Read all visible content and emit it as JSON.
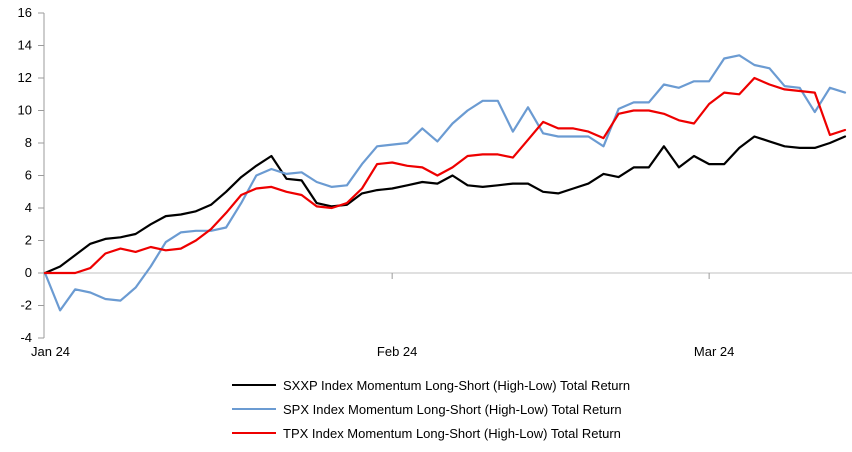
{
  "page": {
    "background": "#ffffff"
  },
  "colors": {
    "axis": "#9B9B9B",
    "zero_line": "#C0C0C0",
    "text": "#000000",
    "sxxp_black": "#000000",
    "spx_blue": "#6B9BD2",
    "tpx_red": "#EE0000"
  },
  "chart_data": {
    "type": "line",
    "title": "",
    "legend_position": "bottom",
    "grid": {
      "horizontal_gridlines": false,
      "zero_line_only": true
    },
    "y_axis": {
      "min": -4,
      "max": 16,
      "step": 2,
      "ticks": [
        16,
        14,
        12,
        10,
        8,
        6,
        4,
        2,
        0,
        -2,
        -4
      ]
    },
    "x_axis": {
      "ticks": [
        {
          "label": "Jan 24",
          "day": 0,
          "align": "left",
          "show_mark": false
        },
        {
          "label": "Feb 24",
          "day": 23,
          "align": "center",
          "show_mark": true
        },
        {
          "label": "Mar 24",
          "day": 44,
          "align": "center",
          "show_mark": true
        }
      ],
      "points_per_series": 54
    },
    "series": [
      {
        "id": "sxxp",
        "name": "SXXP Index Momentum Long-Short (High-Low) Total Return",
        "color": "#000000",
        "values": [
          0,
          0.4,
          1.1,
          1.8,
          2.1,
          2.2,
          2.4,
          3.0,
          3.5,
          3.6,
          3.8,
          4.2,
          5.0,
          5.9,
          6.6,
          7.2,
          5.8,
          5.7,
          4.3,
          4.1,
          4.2,
          4.9,
          5.1,
          5.2,
          5.4,
          5.6,
          5.5,
          6.0,
          5.4,
          5.3,
          5.4,
          5.5,
          5.5,
          5.0,
          4.9,
          5.2,
          5.5,
          6.1,
          5.9,
          6.5,
          6.5,
          7.8,
          6.5,
          7.2,
          6.7,
          6.7,
          7.7,
          8.4,
          8.1,
          7.8,
          7.7,
          7.7,
          8.0,
          8.4
        ]
      },
      {
        "id": "spx",
        "name": "SPX Index Momentum Long-Short (High-Low) Total Return",
        "color": "#6B9BD2",
        "values": [
          0,
          -2.3,
          -1.0,
          -1.2,
          -1.6,
          -1.7,
          -0.9,
          0.4,
          1.9,
          2.5,
          2.6,
          2.6,
          2.8,
          4.3,
          6.0,
          6.4,
          6.1,
          6.2,
          5.6,
          5.3,
          5.4,
          6.7,
          7.8,
          7.9,
          8.0,
          8.9,
          8.1,
          9.2,
          10.0,
          10.6,
          10.6,
          8.7,
          10.2,
          8.6,
          8.4,
          8.4,
          8.4,
          7.8,
          10.1,
          10.5,
          10.5,
          11.6,
          11.4,
          11.8,
          11.8,
          13.2,
          13.4,
          12.8,
          12.6,
          11.5,
          11.4,
          9.9,
          11.4,
          11.1
        ]
      },
      {
        "id": "tpx",
        "name": "TPX Index Momentum Long-Short (High-Low) Total Return",
        "color": "#EE0000",
        "values": [
          0,
          0,
          0,
          0.3,
          1.2,
          1.5,
          1.3,
          1.6,
          1.4,
          1.5,
          2.0,
          2.7,
          3.7,
          4.8,
          5.2,
          5.3,
          5.0,
          4.8,
          4.1,
          4.0,
          4.3,
          5.2,
          6.7,
          6.8,
          6.6,
          6.5,
          6.0,
          6.5,
          7.2,
          7.3,
          7.3,
          7.1,
          8.2,
          9.3,
          8.9,
          8.9,
          8.7,
          8.3,
          9.8,
          10.0,
          10.0,
          9.8,
          9.4,
          9.2,
          10.4,
          11.1,
          11.0,
          12.0,
          11.6,
          11.3,
          11.2,
          11.1,
          8.5,
          8.8
        ]
      }
    ]
  }
}
